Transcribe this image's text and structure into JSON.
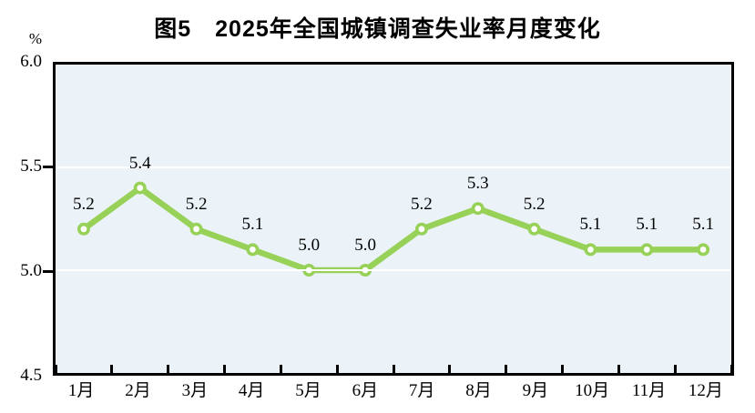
{
  "figure": {
    "title": "图5　2025年全国城镇调查失业率月度变化",
    "y_unit": "%"
  },
  "chart_data": {
    "type": "line",
    "title": "图5　2025年全国城镇调查失业率月度变化",
    "categories": [
      "1月",
      "2月",
      "3月",
      "4月",
      "5月",
      "6月",
      "7月",
      "8月",
      "9月",
      "10月",
      "11月",
      "12月"
    ],
    "values": [
      5.2,
      5.4,
      5.2,
      5.1,
      5.0,
      5.0,
      5.2,
      5.3,
      5.2,
      5.1,
      5.1,
      5.1
    ],
    "data_labels": [
      "5.2",
      "5.4",
      "5.2",
      "5.1",
      "5.0",
      "5.0",
      "5.2",
      "5.3",
      "5.2",
      "5.1",
      "5.1",
      "5.1"
    ],
    "ylabel": "%",
    "ylim": [
      4.5,
      6.0
    ],
    "yticks": [
      "6.0",
      "5.5",
      "5.0",
      "4.5"
    ],
    "grid": "horizontal-white",
    "legend": "none",
    "marker": "circle-open",
    "colors": {
      "line": "#97d158",
      "marker_fill": "#ffffff",
      "plot_background": "#ebf3f8",
      "gridline": "#ffffff",
      "axis": "#000000",
      "text": "#000000"
    }
  }
}
